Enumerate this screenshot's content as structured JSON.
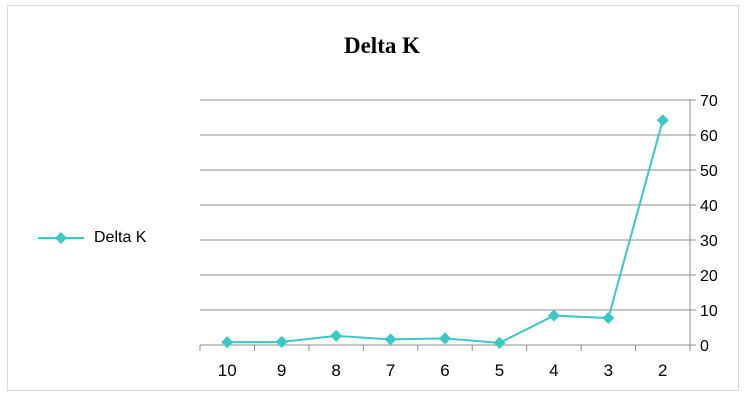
{
  "chart_data": {
    "type": "line",
    "title": "Delta K",
    "categories": [
      "10",
      "9",
      "8",
      "7",
      "6",
      "5",
      "4",
      "3",
      "2"
    ],
    "series": [
      {
        "name": "Delta K",
        "values": [
          0.8,
          0.9,
          2.6,
          1.6,
          1.9,
          0.6,
          8.4,
          7.7,
          64.2
        ],
        "color": "#3cc8c4",
        "marker": "diamond"
      }
    ],
    "ylim": [
      0,
      70
    ],
    "yticks": [
      "0",
      "10",
      "20",
      "30",
      "40",
      "50",
      "60",
      "70"
    ],
    "y_axis_side": "right",
    "grid": true,
    "legend": {
      "position": "left",
      "label": "Delta K"
    }
  }
}
